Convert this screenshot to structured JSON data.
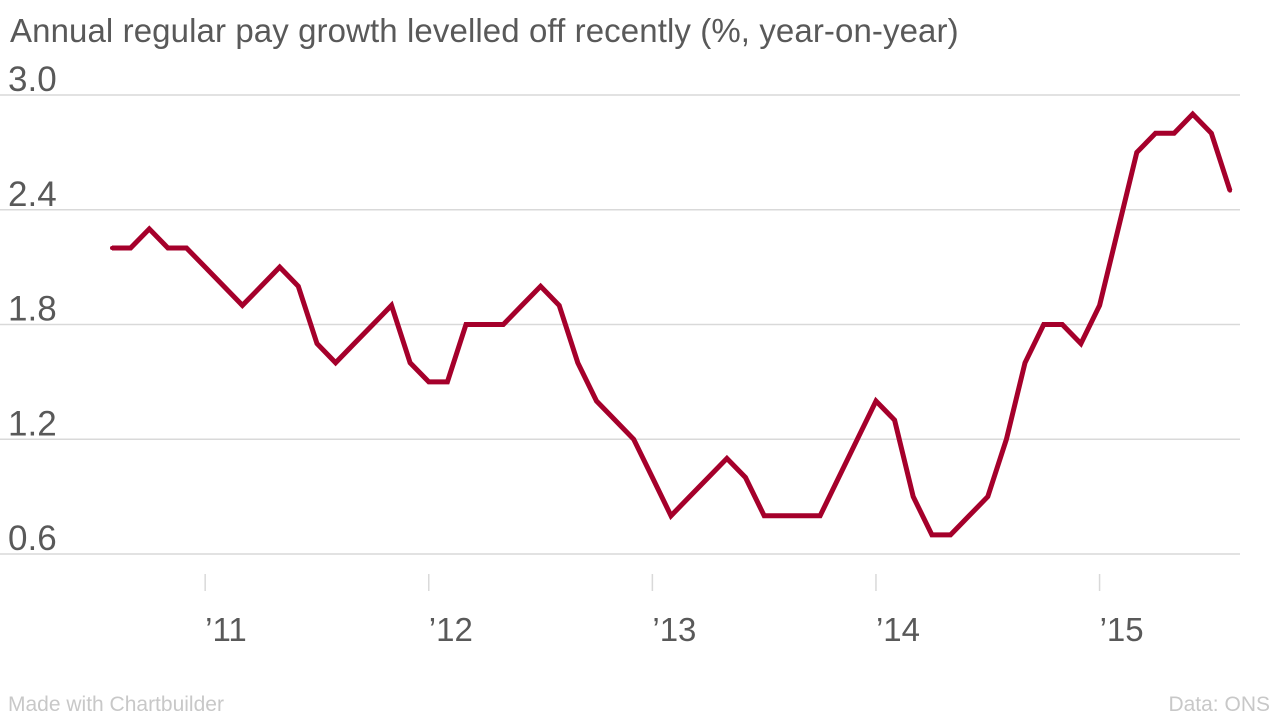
{
  "footer": {
    "left": "Made with Chartbuilder",
    "right": "Data: ONS"
  },
  "chart_data": {
    "type": "line",
    "title": "Annual regular pay growth levelled off recently (%, year-on-year)",
    "xlabel": "",
    "ylabel": "",
    "x_tick_labels": [
      "’11",
      "’12",
      "’13",
      "’14",
      "’15"
    ],
    "y_ticks": [
      0.6,
      1.2,
      1.8,
      2.4,
      3.0
    ],
    "y_tick_labels": [
      "0.6",
      "1.2",
      "1.8",
      "2.4",
      "3.0"
    ],
    "ylim": [
      0.6,
      3.0
    ],
    "xlim": [
      "2010-08",
      "2015-08"
    ],
    "grid": true,
    "colors": {
      "line": "#a5002b",
      "grid": "#d9d9d9",
      "text": "#595959"
    },
    "series": [
      {
        "x": [
          "2010-08",
          "2010-09",
          "2010-10",
          "2010-11",
          "2010-12",
          "2011-01",
          "2011-02",
          "2011-03",
          "2011-04",
          "2011-05",
          "2011-06",
          "2011-07",
          "2011-08",
          "2011-09",
          "2011-10",
          "2011-11",
          "2011-12",
          "2012-01",
          "2012-02",
          "2012-03",
          "2012-04",
          "2012-05",
          "2012-06",
          "2012-07",
          "2012-08",
          "2012-09",
          "2012-10",
          "2012-11",
          "2012-12",
          "2013-01",
          "2013-02",
          "2013-03",
          "2013-04",
          "2013-05",
          "2013-06",
          "2013-07",
          "2013-08",
          "2013-09",
          "2013-10",
          "2013-11",
          "2013-12",
          "2014-01",
          "2014-02",
          "2014-03",
          "2014-04",
          "2014-05",
          "2014-06",
          "2014-07",
          "2014-08",
          "2014-09",
          "2014-10",
          "2014-11",
          "2014-12",
          "2015-01",
          "2015-02",
          "2015-03",
          "2015-04",
          "2015-05",
          "2015-06",
          "2015-07",
          "2015-08"
        ],
        "values": [
          2.2,
          2.2,
          2.3,
          2.2,
          2.2,
          2.1,
          2.0,
          1.9,
          2.0,
          2.1,
          2.0,
          1.7,
          1.6,
          1.7,
          1.8,
          1.9,
          1.6,
          1.5,
          1.5,
          1.8,
          1.8,
          1.8,
          1.9,
          2.0,
          1.9,
          1.6,
          1.4,
          1.3,
          1.2,
          1.0,
          0.8,
          0.9,
          1.0,
          1.1,
          1.0,
          0.8,
          0.8,
          0.8,
          0.8,
          1.0,
          1.2,
          1.4,
          1.3,
          0.9,
          0.7,
          0.7,
          0.8,
          0.9,
          1.2,
          1.6,
          1.8,
          1.8,
          1.7,
          1.9,
          2.3,
          2.7,
          2.8,
          2.8,
          2.9,
          2.8,
          2.5
        ]
      }
    ]
  }
}
